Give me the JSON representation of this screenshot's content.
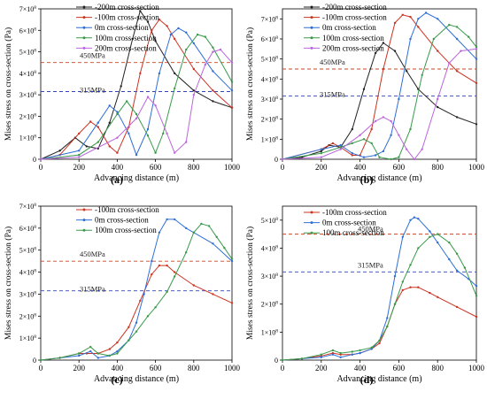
{
  "colors": {
    "black": "#222222",
    "red": "#cc3322",
    "blue": "#2f6fd6",
    "green": "#3a9a4a",
    "violet": "#bb66dd",
    "ref_red": "#cc4422",
    "ref_blue": "#3344bb"
  },
  "chart_data": [
    {
      "type": "line",
      "panel_label": "(a)",
      "xlabel": "Advancing distance (m)",
      "ylabel": "Mises stress on cross-section (Pa)",
      "xlim": [
        0,
        1000
      ],
      "ylim": [
        0,
        700000000
      ],
      "x_ticks": [
        "0",
        "200",
        "400",
        "600",
        "800",
        "1000"
      ],
      "y_ticks": [
        {
          "value": 0,
          "base": "0",
          "exp": ""
        },
        {
          "value": 100000000,
          "base": "1×10",
          "exp": "8"
        },
        {
          "value": 200000000,
          "base": "2×10",
          "exp": "8"
        },
        {
          "value": 300000000,
          "base": "3×10",
          "exp": "8"
        },
        {
          "value": 400000000,
          "base": "4×10",
          "exp": "8"
        },
        {
          "value": 500000000,
          "base": "5×10",
          "exp": "8"
        },
        {
          "value": 600000000,
          "base": "6×10",
          "exp": "8"
        },
        {
          "value": 700000000,
          "base": "7×10",
          "exp": "8"
        }
      ],
      "reference_lines": [
        {
          "label": "450MPa",
          "value": 450000000,
          "color": "#cc4422"
        },
        {
          "label": "315MPa",
          "value": 315000000,
          "color": "#3344bb"
        }
      ],
      "series": [
        {
          "name": "-200m cross-section",
          "color": "#222222",
          "x": [
            0,
            100,
            180,
            240,
            300,
            360,
            420,
            480,
            520,
            560,
            600,
            700,
            800,
            900,
            1000
          ],
          "values": [
            0,
            40000000,
            100000000,
            60000000,
            50000000,
            170000000,
            340000000,
            560000000,
            690000000,
            640000000,
            550000000,
            400000000,
            320000000,
            270000000,
            240000000
          ]
        },
        {
          "name": "-100m cross-section",
          "color": "#cc3322",
          "x": [
            0,
            100,
            200,
            260,
            300,
            360,
            400,
            460,
            520,
            580,
            620,
            660,
            700,
            800,
            900,
            1000
          ],
          "values": [
            0,
            20000000,
            120000000,
            175000000,
            150000000,
            60000000,
            30000000,
            150000000,
            400000000,
            600000000,
            650000000,
            620000000,
            560000000,
            420000000,
            320000000,
            240000000
          ]
        },
        {
          "name": "0m cross-section",
          "color": "#2f6fd6",
          "x": [
            0,
            200,
            300,
            360,
            400,
            460,
            500,
            560,
            620,
            680,
            720,
            760,
            800,
            900,
            1000
          ],
          "values": [
            0,
            40000000,
            170000000,
            250000000,
            220000000,
            120000000,
            20000000,
            140000000,
            400000000,
            580000000,
            610000000,
            590000000,
            540000000,
            410000000,
            320000000
          ]
        },
        {
          "name": "100m cross-section",
          "color": "#3a9a4a",
          "x": [
            0,
            200,
            300,
            400,
            450,
            500,
            560,
            600,
            640,
            700,
            760,
            820,
            860,
            900,
            1000
          ],
          "values": [
            0,
            20000000,
            80000000,
            210000000,
            270000000,
            210000000,
            110000000,
            30000000,
            120000000,
            330000000,
            510000000,
            580000000,
            570000000,
            520000000,
            360000000
          ]
        },
        {
          "name": "200m cross-section",
          "color": "#bb66dd",
          "x": [
            0,
            200,
            400,
            500,
            560,
            600,
            660,
            700,
            760,
            800,
            860,
            900,
            940,
            1000
          ],
          "values": [
            0,
            10000000,
            100000000,
            190000000,
            290000000,
            250000000,
            120000000,
            30000000,
            80000000,
            300000000,
            440000000,
            500000000,
            510000000,
            450000000
          ]
        }
      ]
    },
    {
      "type": "line",
      "panel_label": "(b)",
      "xlabel": "Advancing distance (m)",
      "ylabel": "Mises stress on cross-section (Pa)",
      "xlim": [
        0,
        1000
      ],
      "ylim": [
        0,
        750000000
      ],
      "x_ticks": [
        "0",
        "200",
        "400",
        "600",
        "800",
        "1000"
      ],
      "y_ticks": [
        {
          "value": 0,
          "base": "0",
          "exp": ""
        },
        {
          "value": 100000000,
          "base": "1×10",
          "exp": "8"
        },
        {
          "value": 200000000,
          "base": "2×10",
          "exp": "8"
        },
        {
          "value": 300000000,
          "base": "3×10",
          "exp": "8"
        },
        {
          "value": 400000000,
          "base": "4×10",
          "exp": "8"
        },
        {
          "value": 500000000,
          "base": "5×10",
          "exp": "8"
        },
        {
          "value": 600000000,
          "base": "6×10",
          "exp": "8"
        },
        {
          "value": 700000000,
          "base": "7×10",
          "exp": "8"
        }
      ],
      "reference_lines": [
        {
          "label": "450MPa",
          "value": 450000000,
          "color": "#cc4422"
        },
        {
          "label": "315MPa",
          "value": 315000000,
          "color": "#3344bb"
        }
      ],
      "series": [
        {
          "name": "-200m cross-section",
          "color": "#222222",
          "x": [
            0,
            100,
            200,
            240,
            300,
            360,
            420,
            480,
            520,
            580,
            640,
            700,
            800,
            900,
            1000
          ],
          "values": [
            0,
            10000000,
            40000000,
            70000000,
            60000000,
            150000000,
            350000000,
            530000000,
            580000000,
            540000000,
            440000000,
            350000000,
            260000000,
            210000000,
            175000000
          ]
        },
        {
          "name": "-100m cross-section",
          "color": "#cc3322",
          "x": [
            0,
            200,
            260,
            300,
            360,
            400,
            460,
            520,
            580,
            620,
            660,
            700,
            800,
            900,
            1000
          ],
          "values": [
            0,
            50000000,
            80000000,
            60000000,
            20000000,
            20000000,
            150000000,
            450000000,
            680000000,
            720000000,
            710000000,
            660000000,
            540000000,
            440000000,
            380000000
          ]
        },
        {
          "name": "0m cross-section",
          "color": "#2f6fd6",
          "x": [
            0,
            200,
            300,
            360,
            420,
            480,
            520,
            560,
            600,
            660,
            700,
            740,
            800,
            900,
            1000
          ],
          "values": [
            0,
            50000000,
            70000000,
            30000000,
            10000000,
            20000000,
            40000000,
            120000000,
            300000000,
            600000000,
            700000000,
            730000000,
            700000000,
            600000000,
            500000000
          ]
        },
        {
          "name": "100m cross-section",
          "color": "#3a9a4a",
          "x": [
            0,
            200,
            300,
            360,
            420,
            460,
            500,
            560,
            600,
            660,
            720,
            780,
            860,
            900,
            960,
            1000
          ],
          "values": [
            0,
            30000000,
            60000000,
            80000000,
            100000000,
            80000000,
            10000000,
            0,
            10000000,
            150000000,
            420000000,
            600000000,
            670000000,
            660000000,
            610000000,
            560000000
          ]
        },
        {
          "name": "200m cross-section",
          "color": "#bb66dd",
          "x": [
            0,
            200,
            300,
            400,
            480,
            520,
            560,
            600,
            640,
            680,
            720,
            800,
            860,
            920,
            1000
          ],
          "values": [
            0,
            10000000,
            50000000,
            120000000,
            190000000,
            210000000,
            190000000,
            120000000,
            50000000,
            0,
            50000000,
            300000000,
            480000000,
            540000000,
            550000000
          ]
        }
      ]
    },
    {
      "type": "line",
      "panel_label": "(c)",
      "xlabel": "Advancing distance (m)",
      "ylabel": "Mises stress on cross-section (Pa)",
      "xlim": [
        0,
        1000
      ],
      "ylim": [
        0,
        700000000
      ],
      "x_ticks": [
        "0",
        "200",
        "400",
        "600",
        "800",
        "1000"
      ],
      "y_ticks": [
        {
          "value": 0,
          "base": "0",
          "exp": ""
        },
        {
          "value": 100000000,
          "base": "1×10",
          "exp": "8"
        },
        {
          "value": 200000000,
          "base": "2×10",
          "exp": "8"
        },
        {
          "value": 300000000,
          "base": "3×10",
          "exp": "8"
        },
        {
          "value": 400000000,
          "base": "4×10",
          "exp": "8"
        },
        {
          "value": 500000000,
          "base": "5×10",
          "exp": "8"
        },
        {
          "value": 600000000,
          "base": "6×10",
          "exp": "8"
        },
        {
          "value": 700000000,
          "base": "7×10",
          "exp": "8"
        }
      ],
      "reference_lines": [
        {
          "label": "450MPa",
          "value": 450000000,
          "color": "#cc4422"
        },
        {
          "label": "315MPa",
          "value": 315000000,
          "color": "#3344bb"
        }
      ],
      "series": [
        {
          "name": "-100m cross-section",
          "color": "#cc3322",
          "x": [
            0,
            100,
            200,
            240,
            300,
            360,
            400,
            460,
            520,
            580,
            620,
            660,
            700,
            800,
            900,
            1000
          ],
          "values": [
            0,
            10000000,
            30000000,
            30000000,
            30000000,
            50000000,
            80000000,
            150000000,
            270000000,
            390000000,
            430000000,
            430000000,
            400000000,
            340000000,
            300000000,
            260000000
          ]
        },
        {
          "name": "0m cross-section",
          "color": "#2f6fd6",
          "x": [
            0,
            100,
            200,
            260,
            300,
            360,
            400,
            460,
            500,
            540,
            580,
            620,
            660,
            700,
            760,
            800,
            900,
            1000
          ],
          "values": [
            0,
            10000000,
            20000000,
            40000000,
            10000000,
            20000000,
            40000000,
            90000000,
            170000000,
            300000000,
            450000000,
            580000000,
            640000000,
            640000000,
            600000000,
            580000000,
            530000000,
            450000000
          ]
        },
        {
          "name": "100m cross-section",
          "color": "#3a9a4a",
          "x": [
            0,
            100,
            200,
            260,
            300,
            360,
            400,
            460,
            500,
            560,
            600,
            660,
            700,
            760,
            800,
            840,
            880,
            920,
            960,
            1000
          ],
          "values": [
            0,
            10000000,
            30000000,
            60000000,
            30000000,
            20000000,
            30000000,
            90000000,
            130000000,
            200000000,
            240000000,
            310000000,
            380000000,
            490000000,
            580000000,
            620000000,
            610000000,
            560000000,
            510000000,
            460000000
          ]
        }
      ]
    },
    {
      "type": "line",
      "panel_label": "(d)",
      "xlabel": "Advancing distance (m)",
      "ylabel": "Mises stress on cross-section (Pa)",
      "xlim": [
        0,
        1000
      ],
      "ylim": [
        0,
        550000000
      ],
      "x_ticks": [
        "0",
        "200",
        "400",
        "600",
        "800",
        "1000"
      ],
      "y_ticks": [
        {
          "value": 0,
          "base": "0",
          "exp": ""
        },
        {
          "value": 100000000,
          "base": "1×10",
          "exp": "8"
        },
        {
          "value": 200000000,
          "base": "2×10",
          "exp": "8"
        },
        {
          "value": 300000000,
          "base": "3×10",
          "exp": "8"
        },
        {
          "value": 400000000,
          "base": "4×10",
          "exp": "8"
        },
        {
          "value": 500000000,
          "base": "5×10",
          "exp": "8"
        }
      ],
      "reference_lines": [
        {
          "label": "450MPa",
          "value": 450000000,
          "color": "#cc4422"
        },
        {
          "label": "315MPa",
          "value": 315000000,
          "color": "#3344bb"
        }
      ],
      "series": [
        {
          "name": "-100m cross-section",
          "color": "#cc3322",
          "x": [
            0,
            100,
            200,
            260,
            300,
            360,
            400,
            460,
            500,
            540,
            580,
            620,
            660,
            700,
            760,
            800,
            900,
            1000
          ],
          "values": [
            0,
            5000000,
            15000000,
            25000000,
            20000000,
            20000000,
            25000000,
            40000000,
            60000000,
            120000000,
            200000000,
            250000000,
            260000000,
            260000000,
            240000000,
            225000000,
            190000000,
            155000000
          ]
        },
        {
          "name": "0m cross-section",
          "color": "#2f6fd6",
          "x": [
            0,
            100,
            200,
            260,
            300,
            360,
            400,
            460,
            500,
            540,
            580,
            620,
            660,
            680,
            700,
            760,
            800,
            860,
            900,
            960,
            1000
          ],
          "values": [
            0,
            5000000,
            10000000,
            20000000,
            10000000,
            20000000,
            25000000,
            40000000,
            70000000,
            150000000,
            300000000,
            440000000,
            500000000,
            510000000,
            505000000,
            460000000,
            420000000,
            360000000,
            320000000,
            290000000,
            265000000
          ]
        },
        {
          "name": "100m cross-section",
          "color": "#3a9a4a",
          "x": [
            0,
            100,
            200,
            260,
            300,
            360,
            400,
            460,
            500,
            540,
            580,
            620,
            660,
            700,
            760,
            800,
            860,
            900,
            940,
            1000
          ],
          "values": [
            0,
            5000000,
            20000000,
            35000000,
            25000000,
            30000000,
            35000000,
            45000000,
            70000000,
            120000000,
            200000000,
            280000000,
            340000000,
            400000000,
            440000000,
            450000000,
            420000000,
            380000000,
            330000000,
            230000000
          ]
        }
      ]
    }
  ]
}
